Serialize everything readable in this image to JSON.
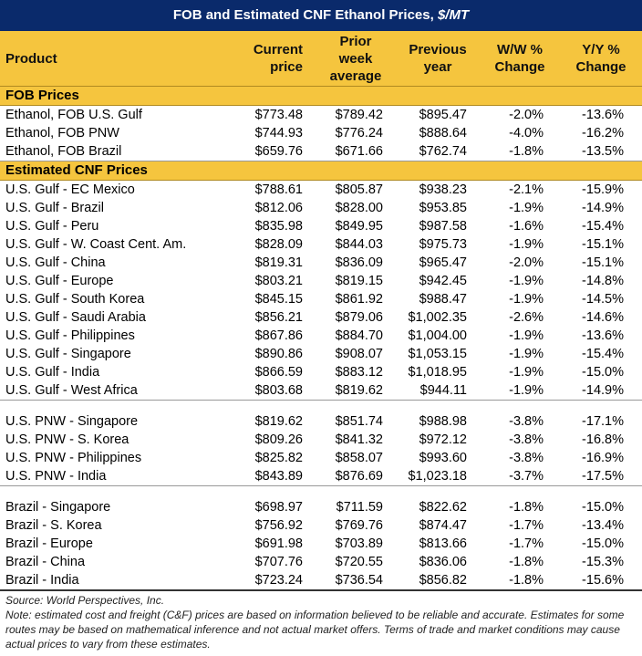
{
  "title": {
    "text": "FOB and Estimated CNF Ethanol Prices, ",
    "unit": "$/MT"
  },
  "headers": {
    "product": "Product",
    "current_l1": "Current",
    "current_l2": "price",
    "prior_l1": "Prior",
    "prior_l2": "week",
    "prior_l3": "average",
    "prev_l1": "Previous",
    "prev_l2": "year",
    "ww_l1": "W/W %",
    "ww_l2": "Change",
    "yy_l1": "Y/Y %",
    "yy_l2": "Change"
  },
  "sections": {
    "fob": "FOB Prices",
    "cnf": "Estimated CNF Prices"
  },
  "fob_rows": [
    [
      "Ethanol, FOB U.S. Gulf",
      "$773.48",
      "$789.42",
      "$895.47",
      "-2.0%",
      "-13.6%"
    ],
    [
      "Ethanol, FOB PNW",
      "$744.93",
      "$776.24",
      "$888.64",
      "-4.0%",
      "-16.2%"
    ],
    [
      "Ethanol, FOB Brazil",
      "$659.76",
      "$671.66",
      "$762.74",
      "-1.8%",
      "-13.5%"
    ]
  ],
  "gulf_rows": [
    [
      "U.S. Gulf - EC Mexico",
      "$788.61",
      "$805.87",
      "$938.23",
      "-2.1%",
      "-15.9%"
    ],
    [
      "U.S. Gulf - Brazil",
      "$812.06",
      "$828.00",
      "$953.85",
      "-1.9%",
      "-14.9%"
    ],
    [
      "U.S. Gulf - Peru",
      "$835.98",
      "$849.95",
      "$987.58",
      "-1.6%",
      "-15.4%"
    ],
    [
      "U.S. Gulf - W. Coast Cent. Am.",
      "$828.09",
      "$844.03",
      "$975.73",
      "-1.9%",
      "-15.1%"
    ],
    [
      "U.S. Gulf - China",
      "$819.31",
      "$836.09",
      "$965.47",
      "-2.0%",
      "-15.1%"
    ],
    [
      "U.S. Gulf - Europe",
      "$803.21",
      "$819.15",
      "$942.45",
      "-1.9%",
      "-14.8%"
    ],
    [
      "U.S. Gulf - South Korea",
      "$845.15",
      "$861.92",
      "$988.47",
      "-1.9%",
      "-14.5%"
    ],
    [
      "U.S. Gulf - Saudi Arabia",
      "$856.21",
      "$879.06",
      "$1,002.35",
      "-2.6%",
      "-14.6%"
    ],
    [
      "U.S. Gulf - Philippines",
      "$867.86",
      "$884.70",
      "$1,004.00",
      "-1.9%",
      "-13.6%"
    ],
    [
      "U.S. Gulf - Singapore",
      "$890.86",
      "$908.07",
      "$1,053.15",
      "-1.9%",
      "-15.4%"
    ],
    [
      "U.S. Gulf - India",
      "$866.59",
      "$883.12",
      "$1,018.95",
      "-1.9%",
      "-15.0%"
    ],
    [
      "U.S. Gulf - West Africa",
      "$803.68",
      "$819.62",
      "$944.11",
      "-1.9%",
      "-14.9%"
    ]
  ],
  "pnw_rows": [
    [
      "U.S. PNW - Singapore",
      "$819.62",
      "$851.74",
      "$988.98",
      "-3.8%",
      "-17.1%"
    ],
    [
      "U.S. PNW - S. Korea",
      "$809.26",
      "$841.32",
      "$972.12",
      "-3.8%",
      "-16.8%"
    ],
    [
      "U.S. PNW - Philippines",
      "$825.82",
      "$858.07",
      "$993.60",
      "-3.8%",
      "-16.9%"
    ],
    [
      "U.S. PNW - India",
      "$843.89",
      "$876.69",
      "$1,023.18",
      "-3.7%",
      "-17.5%"
    ]
  ],
  "brazil_rows": [
    [
      "Brazil - Singapore",
      "$698.97",
      "$711.59",
      "$822.62",
      "-1.8%",
      "-15.0%"
    ],
    [
      "Brazil - S. Korea",
      "$756.92",
      "$769.76",
      "$874.47",
      "-1.7%",
      "-13.4%"
    ],
    [
      "Brazil - Europe",
      "$691.98",
      "$703.89",
      "$813.66",
      "-1.7%",
      "-15.0%"
    ],
    [
      "Brazil - China",
      "$707.76",
      "$720.55",
      "$836.06",
      "-1.8%",
      "-15.3%"
    ],
    [
      "Brazil - India",
      "$723.24",
      "$736.54",
      "$856.82",
      "-1.8%",
      "-15.6%"
    ]
  ],
  "notes": {
    "source": "Source: World Perspectives, Inc.",
    "note": "Note: estimated cost and freight (C&F) prices are based on information believed to be reliable and accurate. Estimates for some routes may be based on mathematical inference and not actual market offers. Terms of trade and market conditions may cause actual prices to vary from these estimates."
  },
  "colors": {
    "title_bg": "#0a2a6b",
    "header_bg": "#f5c53e"
  }
}
